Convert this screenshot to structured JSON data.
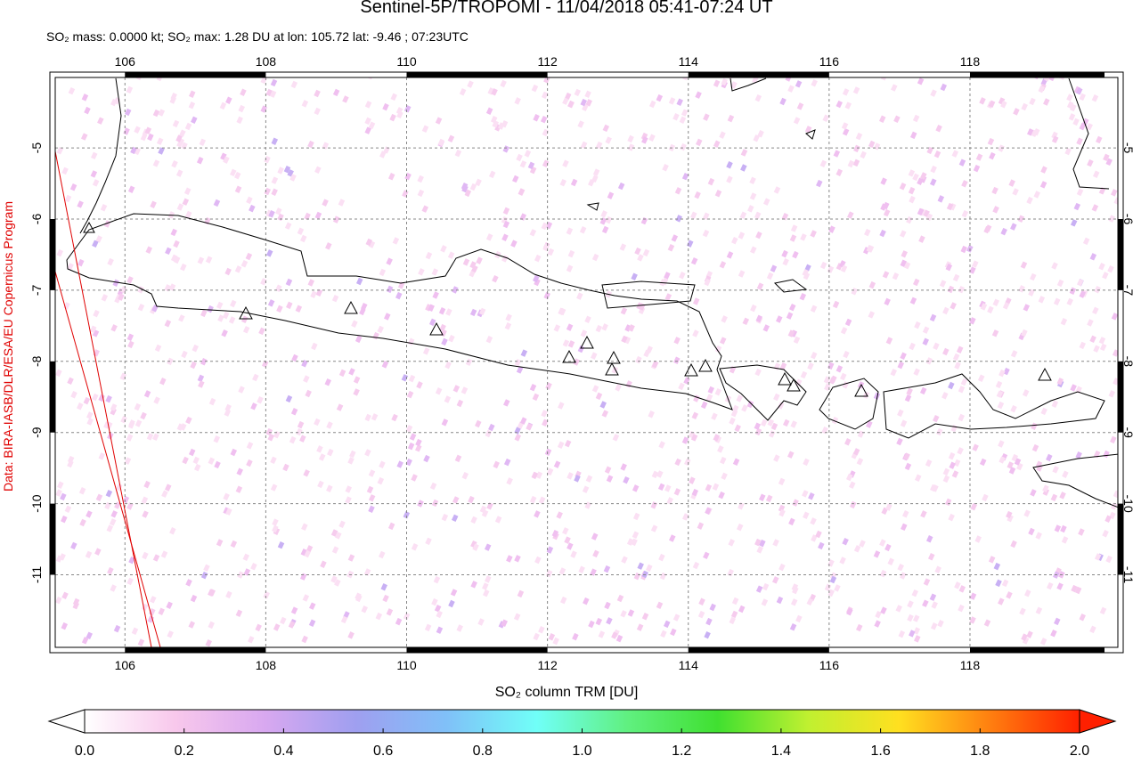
{
  "chart_data": {
    "type": "map",
    "title": "Sentinel-5P/TROPOMI - 11/04/2018 05:41-07:24 UT",
    "subtitle": "SO₂ mass: 0.0000 kt; SO₂ max: 1.28 DU at lon: 105.72 lat: -9.46 ; 07:23UTC",
    "xlim": [
      105.01,
      120.1
    ],
    "xticks": [
      106,
      108,
      110,
      112,
      114,
      116,
      118
    ],
    "ylim": [
      -12.02,
      -4.01
    ],
    "yticks": [
      -5,
      -6,
      -7,
      -8,
      -9,
      -10,
      -11
    ],
    "grid": true,
    "colorbar": {
      "label": "SO₂ column TRM [DU]",
      "lim": [
        0,
        2
      ],
      "ticks": [
        {
          "value": 0,
          "label": "0.0"
        },
        {
          "value": 0.2,
          "label": "0.2"
        },
        {
          "value": 0.4,
          "label": "0.4"
        },
        {
          "value": 0.6,
          "label": "0.6"
        },
        {
          "value": 0.8,
          "label": "0.8"
        },
        {
          "value": 1,
          "label": "1.0"
        },
        {
          "value": 1.2,
          "label": "1.2"
        },
        {
          "value": 1.4,
          "label": "1.4"
        },
        {
          "value": 1.6,
          "label": "1.6"
        },
        {
          "value": 1.8,
          "label": "1.8"
        },
        {
          "value": 2,
          "label": "2.0"
        }
      ],
      "colors": [
        "#ffffff",
        "#f8c8ec",
        "#d8a8f0",
        "#9f9ff0",
        "#80c0f8",
        "#70fff8",
        "#60f080",
        "#40e030",
        "#c0f030",
        "#ffe020",
        "#ff8010",
        "#ff2000"
      ]
    },
    "credit": "Data: BIRA-IASB/DLR/ESA/EU Copernicus Program"
  }
}
